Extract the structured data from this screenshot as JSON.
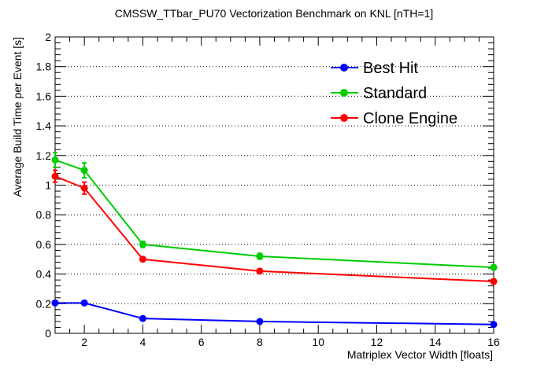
{
  "chart_data": {
    "type": "line",
    "title": "CMSSW_TTbar_PU70 Vectorization Benchmark on KNL [nTH=1]",
    "xlabel": "Matriplex Vector Width [floats]",
    "ylabel": "Average Build Time per Event [s]",
    "xlim": [
      1,
      16
    ],
    "ylim": [
      0,
      2
    ],
    "x_ticks": [
      2,
      4,
      6,
      8,
      10,
      12,
      14,
      16
    ],
    "x_tick_labels": [
      "2",
      "4",
      "6",
      "8",
      "10",
      "12",
      "14",
      "16"
    ],
    "y_ticks": [
      0,
      0.2,
      0.4,
      0.6,
      0.8,
      1,
      1.2,
      1.4,
      1.6,
      1.8,
      2
    ],
    "y_tick_labels": [
      "0",
      "0.2",
      "0.4",
      "0.6",
      "0.8",
      "1",
      "1.2",
      "1.4",
      "1.6",
      "1.8",
      "2"
    ],
    "grid": true,
    "legend_position": "top-right",
    "x": [
      1,
      2,
      4,
      8,
      16
    ],
    "series": [
      {
        "name": "Best Hit",
        "color": "#0000ff",
        "values": [
          0.205,
          0.205,
          0.1,
          0.08,
          0.06
        ],
        "errors": [
          0.01,
          0.01,
          0.005,
          0.005,
          0.005
        ]
      },
      {
        "name": "Standard",
        "color": "#00cc00",
        "values": [
          1.17,
          1.1,
          0.6,
          0.52,
          0.445
        ],
        "errors": [
          0.05,
          0.05,
          0.02,
          0.02,
          0.015
        ]
      },
      {
        "name": "Clone Engine",
        "color": "#ff0000",
        "values": [
          1.06,
          0.98,
          0.5,
          0.42,
          0.35
        ],
        "errors": [
          0.04,
          0.04,
          0.015,
          0.015,
          0.015
        ]
      }
    ]
  }
}
